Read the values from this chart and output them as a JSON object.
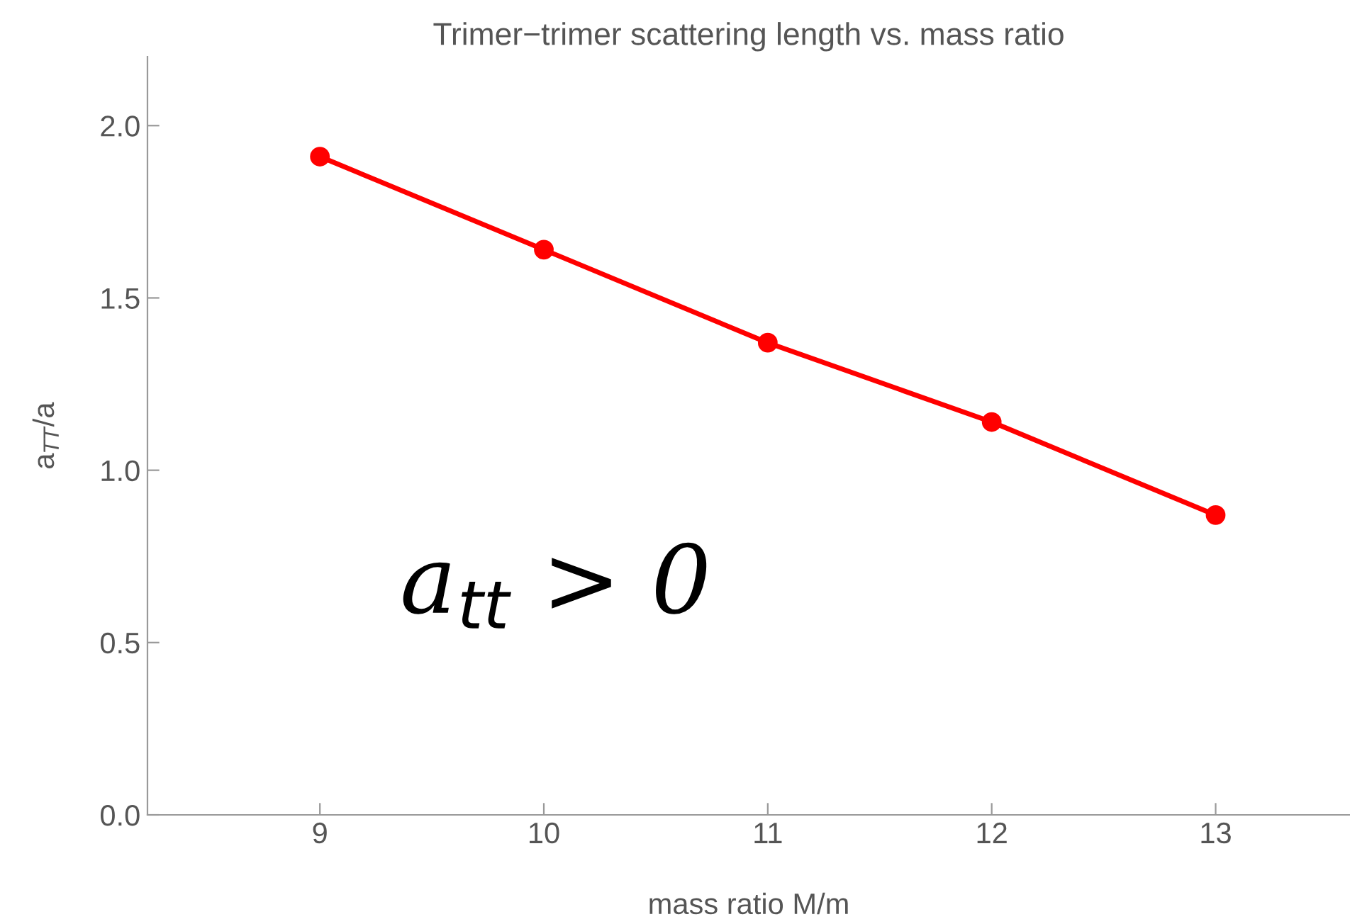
{
  "chart_data": {
    "type": "line",
    "title": "Trimer−trimer scattering length vs. mass ratio",
    "xlabel": "mass ratio M/m",
    "ylabel": "a$_{TT}$/a",
    "x": [
      9,
      10,
      11,
      12,
      13
    ],
    "series": [
      {
        "color": "#ff0000",
        "values": [
          1.91,
          1.64,
          1.37,
          1.14,
          0.87
        ]
      }
    ],
    "xlim": [
      8.23,
      13.6
    ],
    "xticks": [
      9,
      10,
      11,
      12,
      13
    ],
    "ylim": [
      0,
      2.2
    ],
    "yticks": [
      {
        "value": 0,
        "label": "0.0"
      },
      {
        "value": 0.5,
        "label": "0.5"
      },
      {
        "value": 1,
        "label": "1.0"
      },
      {
        "value": 1.5,
        "label": "1.5"
      },
      {
        "value": 2,
        "label": "2.0"
      }
    ],
    "marker": "circle",
    "line_style": "solid",
    "grid": false,
    "legend": false,
    "annotations": [
      "a$_{tt}$ > 0"
    ]
  }
}
